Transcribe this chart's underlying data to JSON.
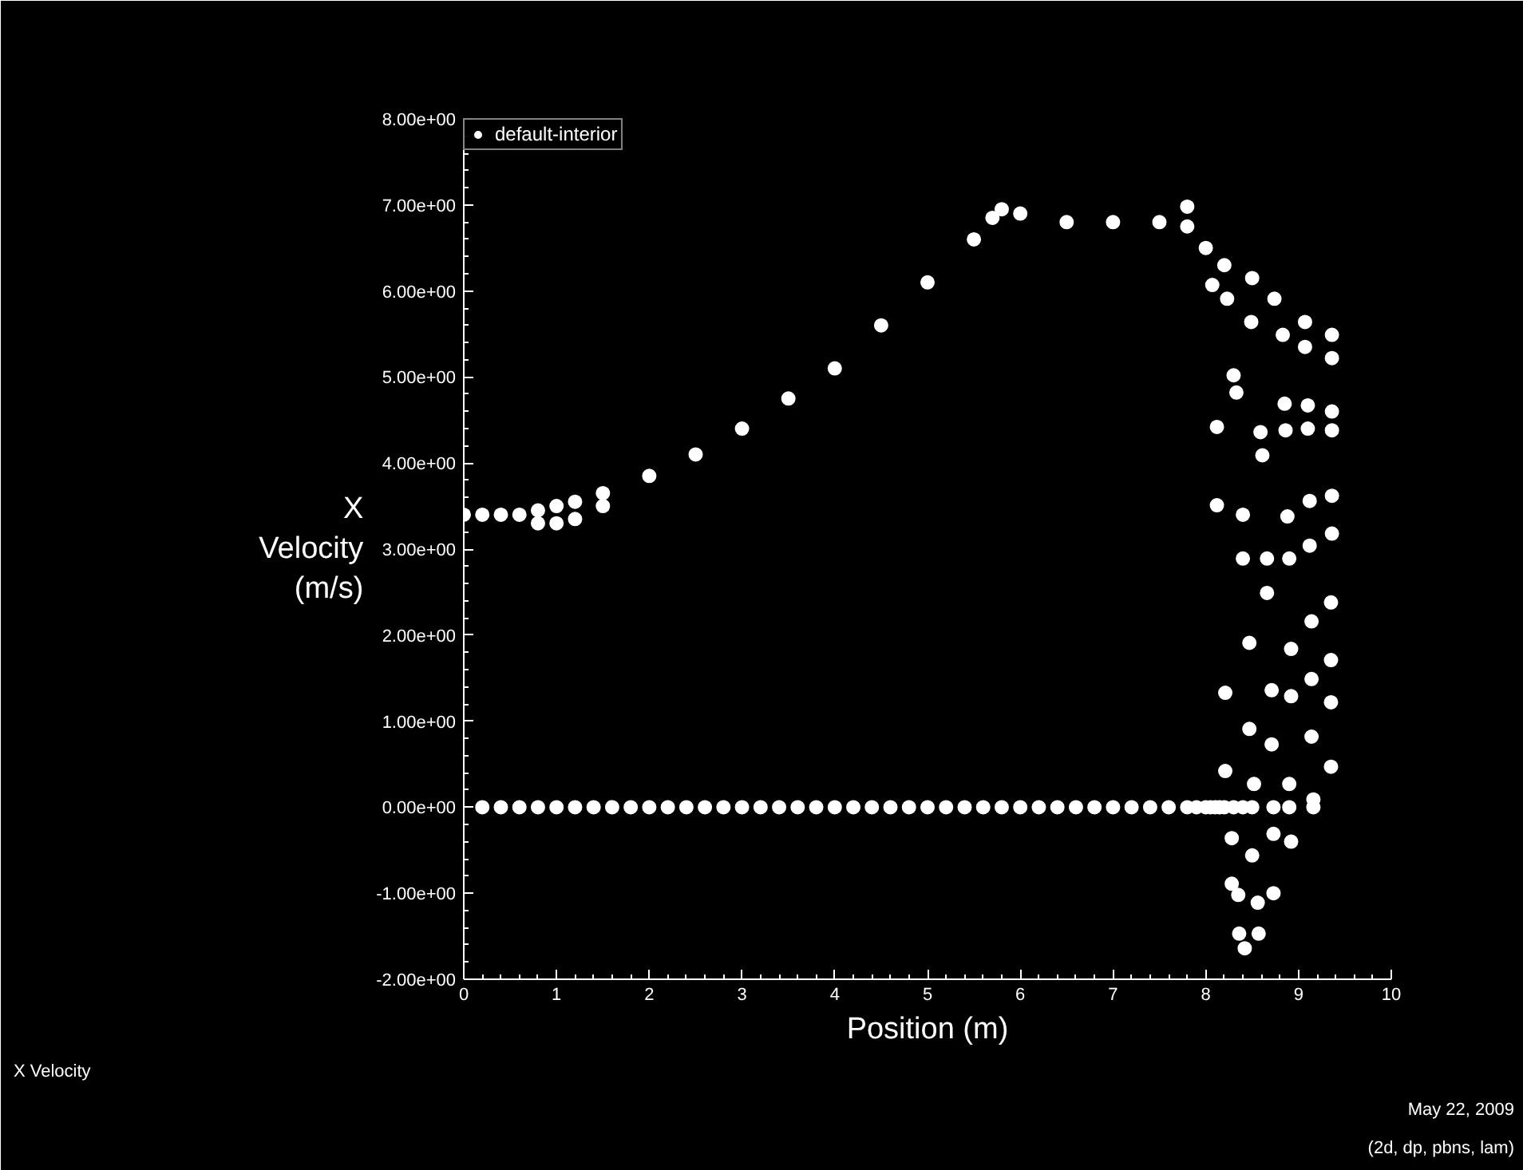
{
  "chart_data": {
    "type": "scatter",
    "xlabel": "Position (m)",
    "ylabel": "X Velocity (m/s)",
    "x": [
      0,
      0.2,
      0.4,
      0.6,
      0.8,
      1.0,
      1.2,
      1.5,
      2.0,
      2.5,
      3.0,
      3.5,
      4.0,
      4.5,
      5.0,
      5.5,
      5.7,
      5.8,
      6.0,
      6.5,
      7.0,
      7.5,
      7.8,
      7.8,
      8.0,
      8.2,
      8.5,
      0.8,
      1.0,
      1.2,
      1.5,
      0.2,
      0.4,
      0.6,
      0.8,
      1.0,
      1.2,
      1.4,
      1.6,
      1.8,
      2.0,
      2.2,
      2.4,
      2.6,
      2.8,
      3.0,
      3.2,
      3.4,
      3.6,
      3.8,
      4.0,
      4.2,
      4.4,
      4.6,
      4.8,
      5.0,
      5.2,
      5.4,
      5.6,
      5.8,
      6.0,
      6.2,
      6.4,
      6.6,
      6.8,
      7.0,
      7.2,
      7.4,
      7.6,
      7.8,
      7.9,
      8.0,
      8.05,
      8.1,
      8.15,
      8.2,
      8.3,
      8.4,
      8.5,
      8.73,
      8.9,
      9.16,
      8.07,
      8.23,
      8.49,
      8.74,
      8.83,
      9.07,
      9.07,
      9.36,
      9.36,
      8.3,
      8.33,
      8.12,
      8.59,
      8.61,
      8.85,
      8.86,
      9.1,
      9.1,
      9.36,
      9.36,
      8.12,
      8.4,
      8.88,
      9.12,
      9.36,
      9.36,
      9.12,
      8.4,
      8.66,
      8.9,
      8.66,
      9.35,
      9.14,
      8.47,
      8.92,
      9.35,
      9.14,
      8.21,
      8.71,
      8.92,
      9.35,
      8.47,
      8.71,
      9.14,
      9.35,
      8.21,
      8.52,
      8.9,
      9.16,
      8.28,
      8.73,
      8.92,
      8.5,
      8.28,
      8.35,
      8.56,
      8.73,
      8.36,
      8.57,
      8.42
    ],
    "series": [
      {
        "name": "default-interior",
        "color": "#ffffff",
        "values": [
          3.4,
          3.4,
          3.4,
          3.4,
          3.45,
          3.5,
          3.55,
          3.65,
          3.85,
          4.1,
          4.4,
          4.75,
          5.1,
          5.6,
          6.1,
          6.6,
          6.85,
          6.95,
          6.9,
          6.8,
          6.8,
          6.8,
          6.75,
          6.98,
          6.5,
          6.3,
          6.15,
          3.3,
          3.3,
          3.35,
          3.5,
          0,
          0,
          0,
          0,
          0,
          0,
          0,
          0,
          0,
          0,
          0,
          0,
          0,
          0,
          0,
          0,
          0,
          0,
          0,
          0,
          0,
          0,
          0,
          0,
          0,
          0,
          0,
          0,
          0,
          0,
          0,
          0,
          0,
          0,
          0,
          0,
          0,
          0,
          0,
          0,
          0,
          0,
          0,
          0,
          0,
          0,
          0,
          0,
          0,
          0,
          0,
          6.07,
          5.91,
          5.64,
          5.91,
          5.49,
          5.64,
          5.35,
          5.49,
          5.22,
          5.02,
          4.82,
          4.42,
          4.36,
          4.09,
          4.69,
          4.38,
          4.67,
          4.4,
          4.6,
          4.38,
          3.51,
          3.4,
          3.38,
          3.56,
          3.62,
          3.18,
          3.04,
          2.89,
          2.89,
          2.89,
          2.49,
          2.38,
          2.16,
          1.91,
          1.84,
          1.71,
          1.49,
          1.33,
          1.36,
          1.29,
          1.22,
          0.91,
          0.73,
          0.82,
          0.47,
          0.42,
          0.27,
          0.27,
          0.09,
          -0.36,
          -0.31,
          -0.4,
          -0.56,
          -0.89,
          -1.02,
          -1.11,
          -1.0,
          -1.47,
          -1.47,
          -1.64
        ]
      }
    ],
    "xlim": [
      0,
      10
    ],
    "xticks": [
      0,
      1,
      2,
      3,
      4,
      5,
      6,
      7,
      8,
      9,
      10
    ],
    "ylim": [
      -2,
      8
    ],
    "yticks": [
      {
        "value": -2,
        "label": "-2.00e+00"
      },
      {
        "value": -1,
        "label": "-1.00e+00"
      },
      {
        "value": 0,
        "label": "0.00e+00"
      },
      {
        "value": 1,
        "label": "1.00e+00"
      },
      {
        "value": 2,
        "label": "2.00e+00"
      },
      {
        "value": 3,
        "label": "3.00e+00"
      },
      {
        "value": 4,
        "label": "4.00e+00"
      },
      {
        "value": 5,
        "label": "5.00e+00"
      },
      {
        "value": 6,
        "label": "6.00e+00"
      },
      {
        "value": 7,
        "label": "7.00e+00"
      },
      {
        "value": 8,
        "label": "8.00e+00"
      }
    ],
    "grid": false,
    "legend": "top left",
    "marker": "circle",
    "annotations": [
      "X Velocity",
      "May 22, 2009",
      "(2d, dp, pbns, lam)"
    ]
  }
}
